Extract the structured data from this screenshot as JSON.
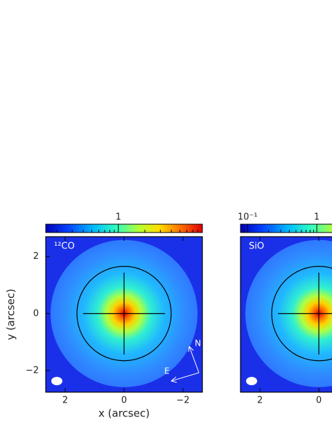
{
  "chart_data": [
    {
      "type": "image",
      "label": "¹²CO",
      "xlabel": "x (arcsec)",
      "ylabel": "y (arcsec)",
      "xlim": [
        2.66,
        -2.66
      ],
      "ylim": [
        -2.76,
        2.7
      ],
      "xticks": [
        2,
        0,
        {
          "value": -2,
          "label": "−2"
        }
      ],
      "yticks": [
        {
          "value": -2,
          "label": "−2"
        },
        0,
        2
      ],
      "colorbar": {
        "scale": "log",
        "lim": [
          0.15,
          9
        ],
        "ticks": [
          1
        ]
      },
      "compass": [
        "N",
        "E"
      ]
    },
    {
      "type": "image",
      "label": "SiO",
      "xlim": [
        2.66,
        -2.66
      ],
      "ylim": [
        -2.76,
        2.7
      ],
      "xticks": [
        2,
        0
      ],
      "colorbar": {
        "scale": "log",
        "lim": [
          0.079,
          14.5
        ],
        "ticks": [
          {
            "value": 0.1,
            "label": "10⁻¹"
          },
          1
        ]
      }
    }
  ]
}
